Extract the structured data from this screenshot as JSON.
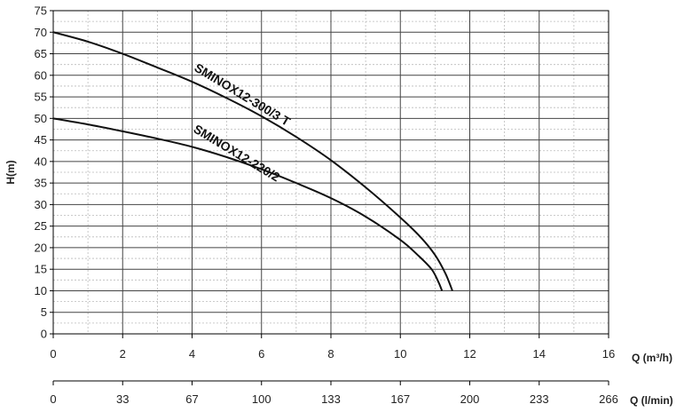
{
  "chart_data": {
    "type": "line",
    "ylabel": "H(m)",
    "xlabel": "Q (m³/h)",
    "x2label": "Q (l/min)",
    "ylim": [
      0,
      75
    ],
    "xlim": [
      0,
      16
    ],
    "yticks": [
      "0",
      "5",
      "10",
      "15",
      "20",
      "25",
      "30",
      "35",
      "40",
      "45",
      "50",
      "55",
      "60",
      "65",
      "70",
      "75"
    ],
    "xticks": [
      "0",
      "2",
      "4",
      "6",
      "8",
      "10",
      "12",
      "14",
      "16"
    ],
    "x2ticks": [
      "0",
      "33",
      "67",
      "100",
      "133",
      "167",
      "200",
      "233",
      "266"
    ],
    "grid": true,
    "series": [
      {
        "name": "SMINOX12-300/3 T",
        "x": [
          0,
          1,
          2,
          3,
          4,
          5,
          6,
          7,
          8,
          9,
          10,
          10.6,
          11,
          11.3,
          11.5
        ],
        "y": [
          70,
          67.8,
          65,
          61.8,
          58.5,
          54.7,
          50.5,
          45.7,
          40.3,
          34,
          27,
          22.3,
          18.3,
          14,
          10
        ]
      },
      {
        "name": "SMINOX12-220/2",
        "x": [
          0,
          1,
          2,
          3,
          4,
          5,
          6,
          7,
          8,
          9,
          10,
          10.5,
          10.9,
          11.1,
          11.2
        ],
        "y": [
          50,
          48.6,
          47,
          45.3,
          43.4,
          41,
          38.2,
          35,
          31.5,
          27.2,
          21.8,
          18.3,
          15,
          12,
          10
        ]
      }
    ]
  }
}
